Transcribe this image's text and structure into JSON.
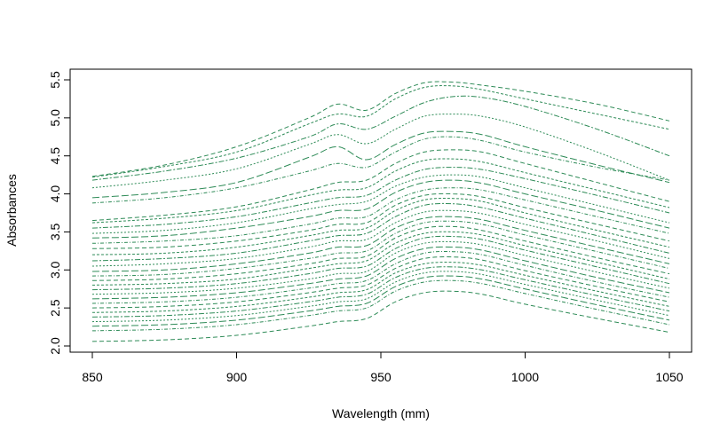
{
  "chart_data": {
    "type": "line",
    "title": "",
    "xlabel": "Wavelength (mm)",
    "ylabel": "Absorbances",
    "xlim": [
      850,
      1050
    ],
    "ylim": [
      2.0,
      5.5
    ],
    "x_ticks": [
      "850",
      "900",
      "950",
      "1000",
      "1050"
    ],
    "y_ticks": [
      "2.0",
      "2.5",
      "3.0",
      "3.5",
      "4.0",
      "4.5",
      "5.0",
      "5.5"
    ],
    "line_color": "#2e8b57",
    "line_style": "dashed",
    "grid": false,
    "legend": "none",
    "x": [
      850,
      875,
      900,
      925,
      935,
      945,
      955,
      965,
      975,
      985,
      1000,
      1025,
      1050
    ],
    "series": [
      {
        "values": [
          4.23,
          4.38,
          4.62,
          5.0,
          5.18,
          5.1,
          5.32,
          5.46,
          5.47,
          5.43,
          5.35,
          5.18,
          4.96
        ]
      },
      {
        "values": [
          4.22,
          4.36,
          4.55,
          4.92,
          5.05,
          5.02,
          5.25,
          5.4,
          5.42,
          5.37,
          5.25,
          5.05,
          4.85
        ]
      },
      {
        "values": [
          4.18,
          4.3,
          4.47,
          4.75,
          4.92,
          4.85,
          5.02,
          5.2,
          5.28,
          5.27,
          5.15,
          4.85,
          4.5
        ]
      },
      {
        "values": [
          4.08,
          4.18,
          4.33,
          4.65,
          4.78,
          4.66,
          4.85,
          5.02,
          5.05,
          5.02,
          4.88,
          4.55,
          4.18
        ]
      },
      {
        "values": [
          3.95,
          4.02,
          4.15,
          4.48,
          4.62,
          4.45,
          4.65,
          4.8,
          4.82,
          4.78,
          4.62,
          4.38,
          4.15
        ]
      },
      {
        "values": [
          3.88,
          3.95,
          4.08,
          4.3,
          4.4,
          4.35,
          4.55,
          4.72,
          4.75,
          4.7,
          4.55,
          4.35,
          4.18
        ]
      },
      {
        "values": [
          3.65,
          3.72,
          3.83,
          4.05,
          4.15,
          4.18,
          4.4,
          4.55,
          4.58,
          4.55,
          4.4,
          4.15,
          3.9
        ]
      },
      {
        "values": [
          3.62,
          3.68,
          3.78,
          3.98,
          4.05,
          4.08,
          4.3,
          4.44,
          4.46,
          4.42,
          4.28,
          4.05,
          3.82
        ]
      },
      {
        "values": [
          3.55,
          3.6,
          3.7,
          3.88,
          3.95,
          3.98,
          4.18,
          4.32,
          4.35,
          4.32,
          4.2,
          3.98,
          3.75
        ]
      },
      {
        "values": [
          3.48,
          3.52,
          3.62,
          3.8,
          3.86,
          3.9,
          4.1,
          4.22,
          4.25,
          4.22,
          4.08,
          3.85,
          3.62
        ]
      },
      {
        "values": [
          3.42,
          3.45,
          3.55,
          3.7,
          3.78,
          3.8,
          4.02,
          4.15,
          4.18,
          4.14,
          4.0,
          3.78,
          3.55
        ]
      },
      {
        "values": [
          3.35,
          3.38,
          3.45,
          3.6,
          3.68,
          3.7,
          3.92,
          4.05,
          4.08,
          4.05,
          3.92,
          3.7,
          3.48
        ]
      },
      {
        "values": [
          3.28,
          3.3,
          3.38,
          3.52,
          3.6,
          3.62,
          3.85,
          3.98,
          4.0,
          3.96,
          3.82,
          3.6,
          3.38
        ]
      },
      {
        "values": [
          3.2,
          3.22,
          3.3,
          3.45,
          3.52,
          3.55,
          3.78,
          3.92,
          3.94,
          3.9,
          3.75,
          3.52,
          3.3
        ]
      },
      {
        "values": [
          3.12,
          3.15,
          3.22,
          3.38,
          3.45,
          3.48,
          3.7,
          3.85,
          3.87,
          3.82,
          3.68,
          3.45,
          3.22
        ]
      },
      {
        "values": [
          3.05,
          3.08,
          3.15,
          3.3,
          3.38,
          3.4,
          3.62,
          3.76,
          3.78,
          3.74,
          3.6,
          3.38,
          3.15
        ]
      },
      {
        "values": [
          2.98,
          3.0,
          3.08,
          3.22,
          3.3,
          3.32,
          3.55,
          3.68,
          3.7,
          3.66,
          3.52,
          3.3,
          3.08
        ]
      },
      {
        "values": [
          2.92,
          2.94,
          3.02,
          3.15,
          3.22,
          3.25,
          3.48,
          3.62,
          3.64,
          3.6,
          3.46,
          3.24,
          3.02
        ]
      },
      {
        "values": [
          2.86,
          2.88,
          2.95,
          3.08,
          3.15,
          3.18,
          3.42,
          3.55,
          3.57,
          3.52,
          3.38,
          3.16,
          2.95
        ]
      },
      {
        "values": [
          2.8,
          2.82,
          2.88,
          3.02,
          3.08,
          3.12,
          3.35,
          3.48,
          3.5,
          3.46,
          3.32,
          3.1,
          2.88
        ]
      },
      {
        "values": [
          2.74,
          2.76,
          2.82,
          2.95,
          3.02,
          3.05,
          3.28,
          3.42,
          3.44,
          3.4,
          3.26,
          3.04,
          2.82
        ]
      },
      {
        "values": [
          2.68,
          2.7,
          2.76,
          2.88,
          2.95,
          2.98,
          3.22,
          3.35,
          3.37,
          3.33,
          3.19,
          2.97,
          2.76
        ]
      },
      {
        "values": [
          2.62,
          2.64,
          2.7,
          2.82,
          2.88,
          2.92,
          3.15,
          3.28,
          3.3,
          3.26,
          3.12,
          2.9,
          2.7
        ]
      },
      {
        "values": [
          2.56,
          2.58,
          2.64,
          2.76,
          2.82,
          2.86,
          3.08,
          3.22,
          3.24,
          3.2,
          3.06,
          2.84,
          2.64
        ]
      },
      {
        "values": [
          2.5,
          2.52,
          2.58,
          2.7,
          2.76,
          2.8,
          3.02,
          3.15,
          3.17,
          3.13,
          2.99,
          2.78,
          2.58
        ]
      },
      {
        "values": [
          2.44,
          2.46,
          2.52,
          2.64,
          2.7,
          2.74,
          2.96,
          3.08,
          3.1,
          3.06,
          2.93,
          2.72,
          2.52
        ]
      },
      {
        "values": [
          2.38,
          2.4,
          2.46,
          2.58,
          2.64,
          2.68,
          2.9,
          3.02,
          3.04,
          3.0,
          2.87,
          2.66,
          2.46
        ]
      },
      {
        "values": [
          2.32,
          2.34,
          2.4,
          2.52,
          2.58,
          2.62,
          2.84,
          2.96,
          2.98,
          2.94,
          2.81,
          2.6,
          2.4
        ]
      },
      {
        "values": [
          2.26,
          2.28,
          2.34,
          2.46,
          2.52,
          2.56,
          2.78,
          2.9,
          2.92,
          2.88,
          2.75,
          2.54,
          2.34
        ]
      },
      {
        "values": [
          2.2,
          2.22,
          2.28,
          2.4,
          2.46,
          2.5,
          2.72,
          2.84,
          2.86,
          2.82,
          2.69,
          2.48,
          2.28
        ]
      },
      {
        "values": [
          2.06,
          2.08,
          2.14,
          2.26,
          2.32,
          2.36,
          2.58,
          2.7,
          2.72,
          2.68,
          2.55,
          2.36,
          2.18
        ]
      }
    ]
  }
}
